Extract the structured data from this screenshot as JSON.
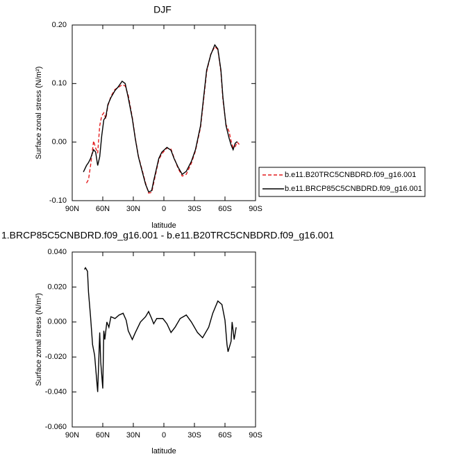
{
  "chart_data": [
    {
      "type": "line",
      "title": "DJF",
      "xlabel": "latitude",
      "ylabel": "Surface zonal stress (N/m²)",
      "x": [
        79,
        76,
        74,
        72,
        69,
        67,
        65,
        63,
        61,
        59,
        57,
        55,
        52,
        48,
        45,
        41,
        38,
        35,
        31,
        28,
        25,
        21,
        18,
        15,
        12,
        10,
        5,
        2,
        -3,
        -7,
        -10,
        -14,
        -18,
        -22,
        -27,
        -31,
        -36,
        -39,
        -42,
        -46,
        -50,
        -53,
        -56,
        -58,
        -61,
        -64,
        -66,
        -68,
        -70,
        -72,
        -74
      ],
      "series": [
        {
          "name": "b.e11.B20TRC5CNBDRD.f09_g16.001",
          "color": "#e41a1c",
          "line_style": "dashed",
          "values": [
            null,
            -0.07,
            -0.064,
            -0.04,
            0.002,
            -0.01,
            -0.019,
            0.028,
            0.045,
            0.05,
            0.04,
            0.062,
            0.078,
            0.09,
            0.093,
            0.098,
            0.096,
            0.08,
            0.042,
            0.006,
            -0.024,
            -0.05,
            -0.07,
            -0.087,
            -0.086,
            -0.07,
            -0.03,
            -0.02,
            -0.01,
            -0.012,
            -0.027,
            -0.045,
            -0.058,
            -0.055,
            -0.036,
            -0.015,
            0.025,
            0.072,
            0.12,
            0.15,
            0.163,
            0.158,
            0.12,
            0.072,
            0.03,
            0.018,
            0.002,
            -0.01,
            -0.008,
            0.0,
            -0.004
          ]
        },
        {
          "name": "b.e11.BRCP85C5CNBDRD.f09_g16.001",
          "color": "#000000",
          "line_style": "solid",
          "values": [
            -0.051,
            -0.04,
            -0.035,
            -0.028,
            -0.013,
            -0.017,
            -0.04,
            -0.025,
            0.011,
            0.038,
            0.043,
            0.064,
            0.076,
            0.088,
            0.094,
            0.104,
            0.1,
            0.076,
            0.04,
            0.005,
            -0.025,
            -0.052,
            -0.072,
            -0.085,
            -0.083,
            -0.066,
            -0.028,
            -0.017,
            -0.009,
            -0.014,
            -0.028,
            -0.043,
            -0.055,
            -0.05,
            -0.033,
            -0.013,
            0.028,
            0.076,
            0.123,
            0.149,
            0.166,
            0.159,
            0.123,
            0.076,
            0.028,
            0.007,
            -0.005,
            -0.013,
            -0.002,
            0.001,
            null
          ]
        }
      ],
      "xlim": [
        90,
        -90
      ],
      "xticks": [
        {
          "value": 90,
          "label": "90N"
        },
        {
          "value": 60,
          "label": "60N"
        },
        {
          "value": 30,
          "label": "30N"
        },
        0,
        {
          "value": -30,
          "label": "30S"
        },
        {
          "value": -60,
          "label": "60S"
        },
        {
          "value": -90,
          "label": "90S"
        }
      ],
      "ylim": [
        -0.1,
        0.2
      ],
      "yticks": [
        {
          "value": -0.1,
          "label": "-0.10"
        },
        {
          "value": 0,
          "label": "0.00"
        },
        {
          "value": 0.1,
          "label": "0.10"
        },
        {
          "value": 0.2,
          "label": "0.20"
        }
      ],
      "legend": "outside-right"
    },
    {
      "type": "line",
      "title": "1.BRCP85C5CNBDRD.f09_g16.001 - b.e11.B20TRC5CNBDRD.f09_g16.001",
      "xlabel": "latitude",
      "ylabel": "Surface zonal stress (N/m²)",
      "x": [
        78,
        77,
        75,
        74,
        72,
        70,
        68,
        67,
        65,
        63,
        62,
        60,
        59,
        58,
        56,
        54,
        52,
        48,
        44,
        40,
        37,
        35,
        31,
        28,
        23,
        18,
        15,
        12,
        10,
        7,
        1,
        -3,
        -7,
        -11,
        -16,
        -22,
        -27,
        -33,
        -38,
        -44,
        -48,
        -53,
        -57,
        -60,
        -62,
        -63,
        -66,
        -67,
        -69,
        -71
      ],
      "series": [
        {
          "color": "#000000",
          "line_style": "solid",
          "values": [
            0.03,
            0.031,
            0.029,
            0.017,
            0.003,
            -0.013,
            -0.019,
            -0.026,
            -0.04,
            -0.006,
            -0.023,
            -0.038,
            -0.005,
            -0.01,
            0.0,
            -0.003,
            0.003,
            0.002,
            0.004,
            0.005,
            0.001,
            -0.005,
            -0.01,
            -0.006,
            0.0,
            0.003,
            0.006,
            0.002,
            -0.001,
            0.002,
            0.002,
            -0.001,
            -0.006,
            -0.003,
            0.002,
            0.004,
            0.0,
            -0.006,
            -0.009,
            -0.003,
            0.005,
            0.012,
            0.01,
            0.001,
            -0.013,
            -0.017,
            -0.011,
            0.0,
            -0.01,
            -0.003
          ]
        }
      ],
      "xlim": [
        90,
        -90
      ],
      "xticks": [
        {
          "value": 90,
          "label": "90N"
        },
        {
          "value": 60,
          "label": "60N"
        },
        {
          "value": 30,
          "label": "30N"
        },
        0,
        {
          "value": -30,
          "label": "30S"
        },
        {
          "value": -60,
          "label": "60S"
        },
        {
          "value": -90,
          "label": "90S"
        }
      ],
      "ylim": [
        -0.06,
        0.04
      ],
      "yticks": [
        {
          "value": -0.06,
          "label": "-0.060"
        },
        {
          "value": -0.04,
          "label": "-0.040"
        },
        {
          "value": -0.02,
          "label": "-0.020"
        },
        {
          "value": 0,
          "label": "0.000"
        },
        {
          "value": 0.02,
          "label": "0.020"
        },
        {
          "value": 0.04,
          "label": "0.040"
        }
      ]
    }
  ]
}
